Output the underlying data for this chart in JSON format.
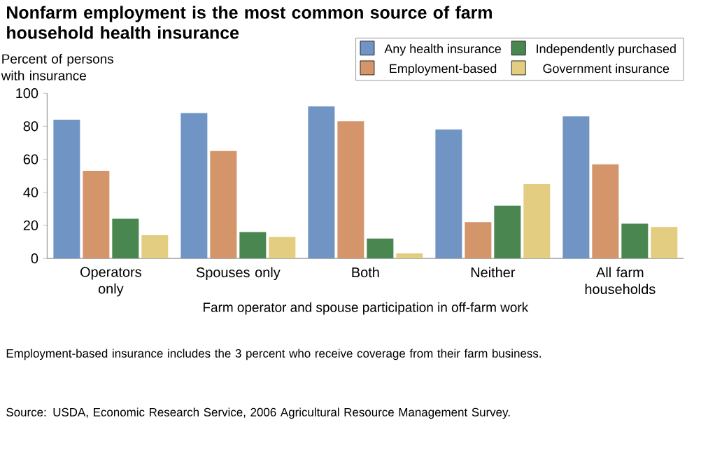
{
  "chart_data": {
    "type": "bar",
    "title": "Nonfarm employment is the most common source of farm household health insurance",
    "ylabel": "Percent of persons with insurance",
    "xlabel": "Farm operator and spouse participation in off-farm work",
    "categories": [
      "Operators only",
      "Spouses only",
      "Both",
      "Neither",
      "All farm households"
    ],
    "series": [
      {
        "name": "Any health insurance",
        "color": "#7095c4",
        "values": [
          84,
          88,
          92,
          78,
          86
        ]
      },
      {
        "name": "Employment-based",
        "color": "#d4956b",
        "values": [
          53,
          65,
          83,
          22,
          57
        ]
      },
      {
        "name": "Independently purchased",
        "color": "#4a8750",
        "values": [
          24,
          16,
          12,
          32,
          21
        ]
      },
      {
        "name": "Government insurance",
        "color": "#e2cd80",
        "values": [
          14,
          13,
          3,
          45,
          19
        ]
      }
    ],
    "ylim": [
      0,
      100
    ],
    "yticks": [
      0,
      20,
      40,
      60,
      80,
      100
    ],
    "legend": "top right",
    "grid": false,
    "annotations": [
      "Employment-based insurance includes the 3 percent who receive coverage from their farm business.",
      "Source:  USDA, Economic Research Service, 2006 Agricultural Resource Management Survey."
    ]
  }
}
